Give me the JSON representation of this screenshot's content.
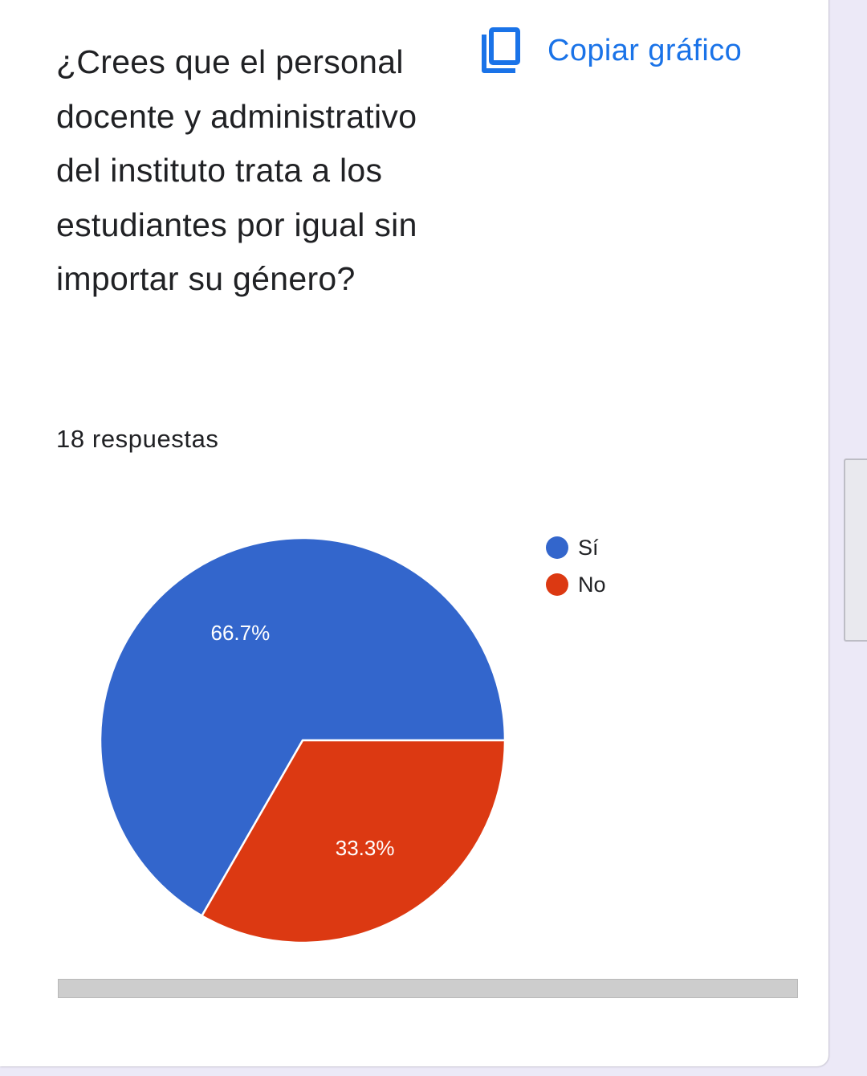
{
  "question": {
    "title": "¿Crees que el personal docente y administrativo del instituto trata a los estudiantes por igual sin importar su género?",
    "responses": "18 respuestas"
  },
  "toolbar": {
    "copy_label": "Copiar gráfico",
    "copy_icon": "copy-icon",
    "accent_color": "#1a73e8"
  },
  "chart_data": {
    "type": "pie",
    "categories": [
      "Sí",
      "No"
    ],
    "values": [
      66.7,
      33.3
    ],
    "labels": [
      "66.7%",
      "33.3%"
    ],
    "colors": [
      "#3366cc",
      "#dc3912"
    ],
    "legend_position": "right"
  }
}
